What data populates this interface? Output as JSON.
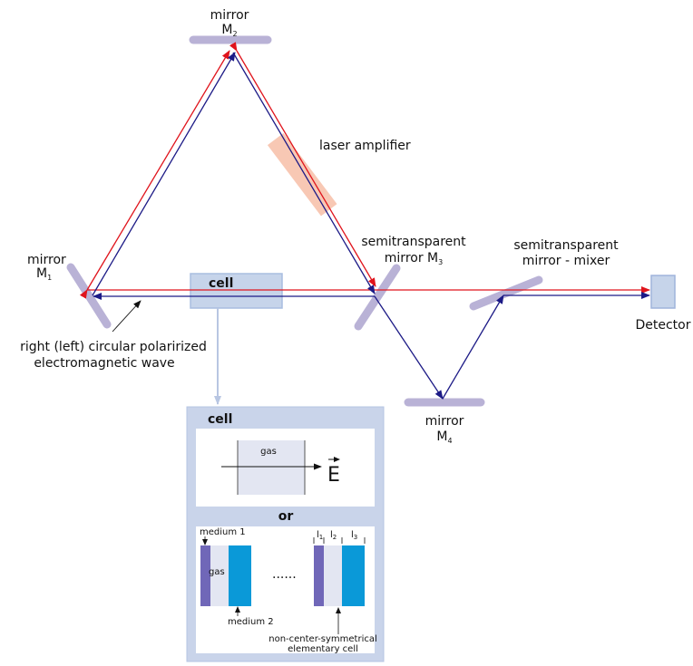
{
  "labels": {
    "mirror_m2": {
      "line1": "mirror",
      "letter": "M",
      "sub": "2"
    },
    "laser_amplifier": "laser amplifier",
    "mirror_m1": {
      "line1": "mirror",
      "letter": "M",
      "sub": "1"
    },
    "semi_m3": {
      "line1": "semitransparent",
      "line2": "mirror M",
      "sub": "3"
    },
    "semi_mixer": {
      "line1": "semitransparent",
      "line2": "mirror - mixer"
    },
    "cell": "cell",
    "detector": "Detector",
    "wave": {
      "line1": "right (left) circular polarirized",
      "line2": "electromagnetic wave"
    },
    "mirror_m4": {
      "line1": "mirror",
      "letter": "M",
      "sub": "4"
    }
  },
  "inset": {
    "title": "cell",
    "gas": "gas",
    "field": "E",
    "or": "or",
    "medium1": "medium 1",
    "gas2": "gas",
    "medium2": "medium 2",
    "dots": "......",
    "l1": {
      "letter": "l",
      "sub": "1"
    },
    "l2": {
      "letter": "l",
      "sub": "2"
    },
    "l3": {
      "letter": "l",
      "sub": "3"
    },
    "caption": {
      "line1": "non-center-symmetrical",
      "line2": "elementary cell"
    }
  },
  "colors": {
    "mirror": "#b9b2d6",
    "amplifier": "#f8c8b4",
    "red_beam": "#e0141c",
    "blue_beam": "#1c1a86",
    "cell_fill": "#c6d4ea",
    "inset_frame": "#c9d4ea",
    "medium1": "#7067b8",
    "medium2": "#0a99d8",
    "gas_fill": "#e3e6f2"
  }
}
